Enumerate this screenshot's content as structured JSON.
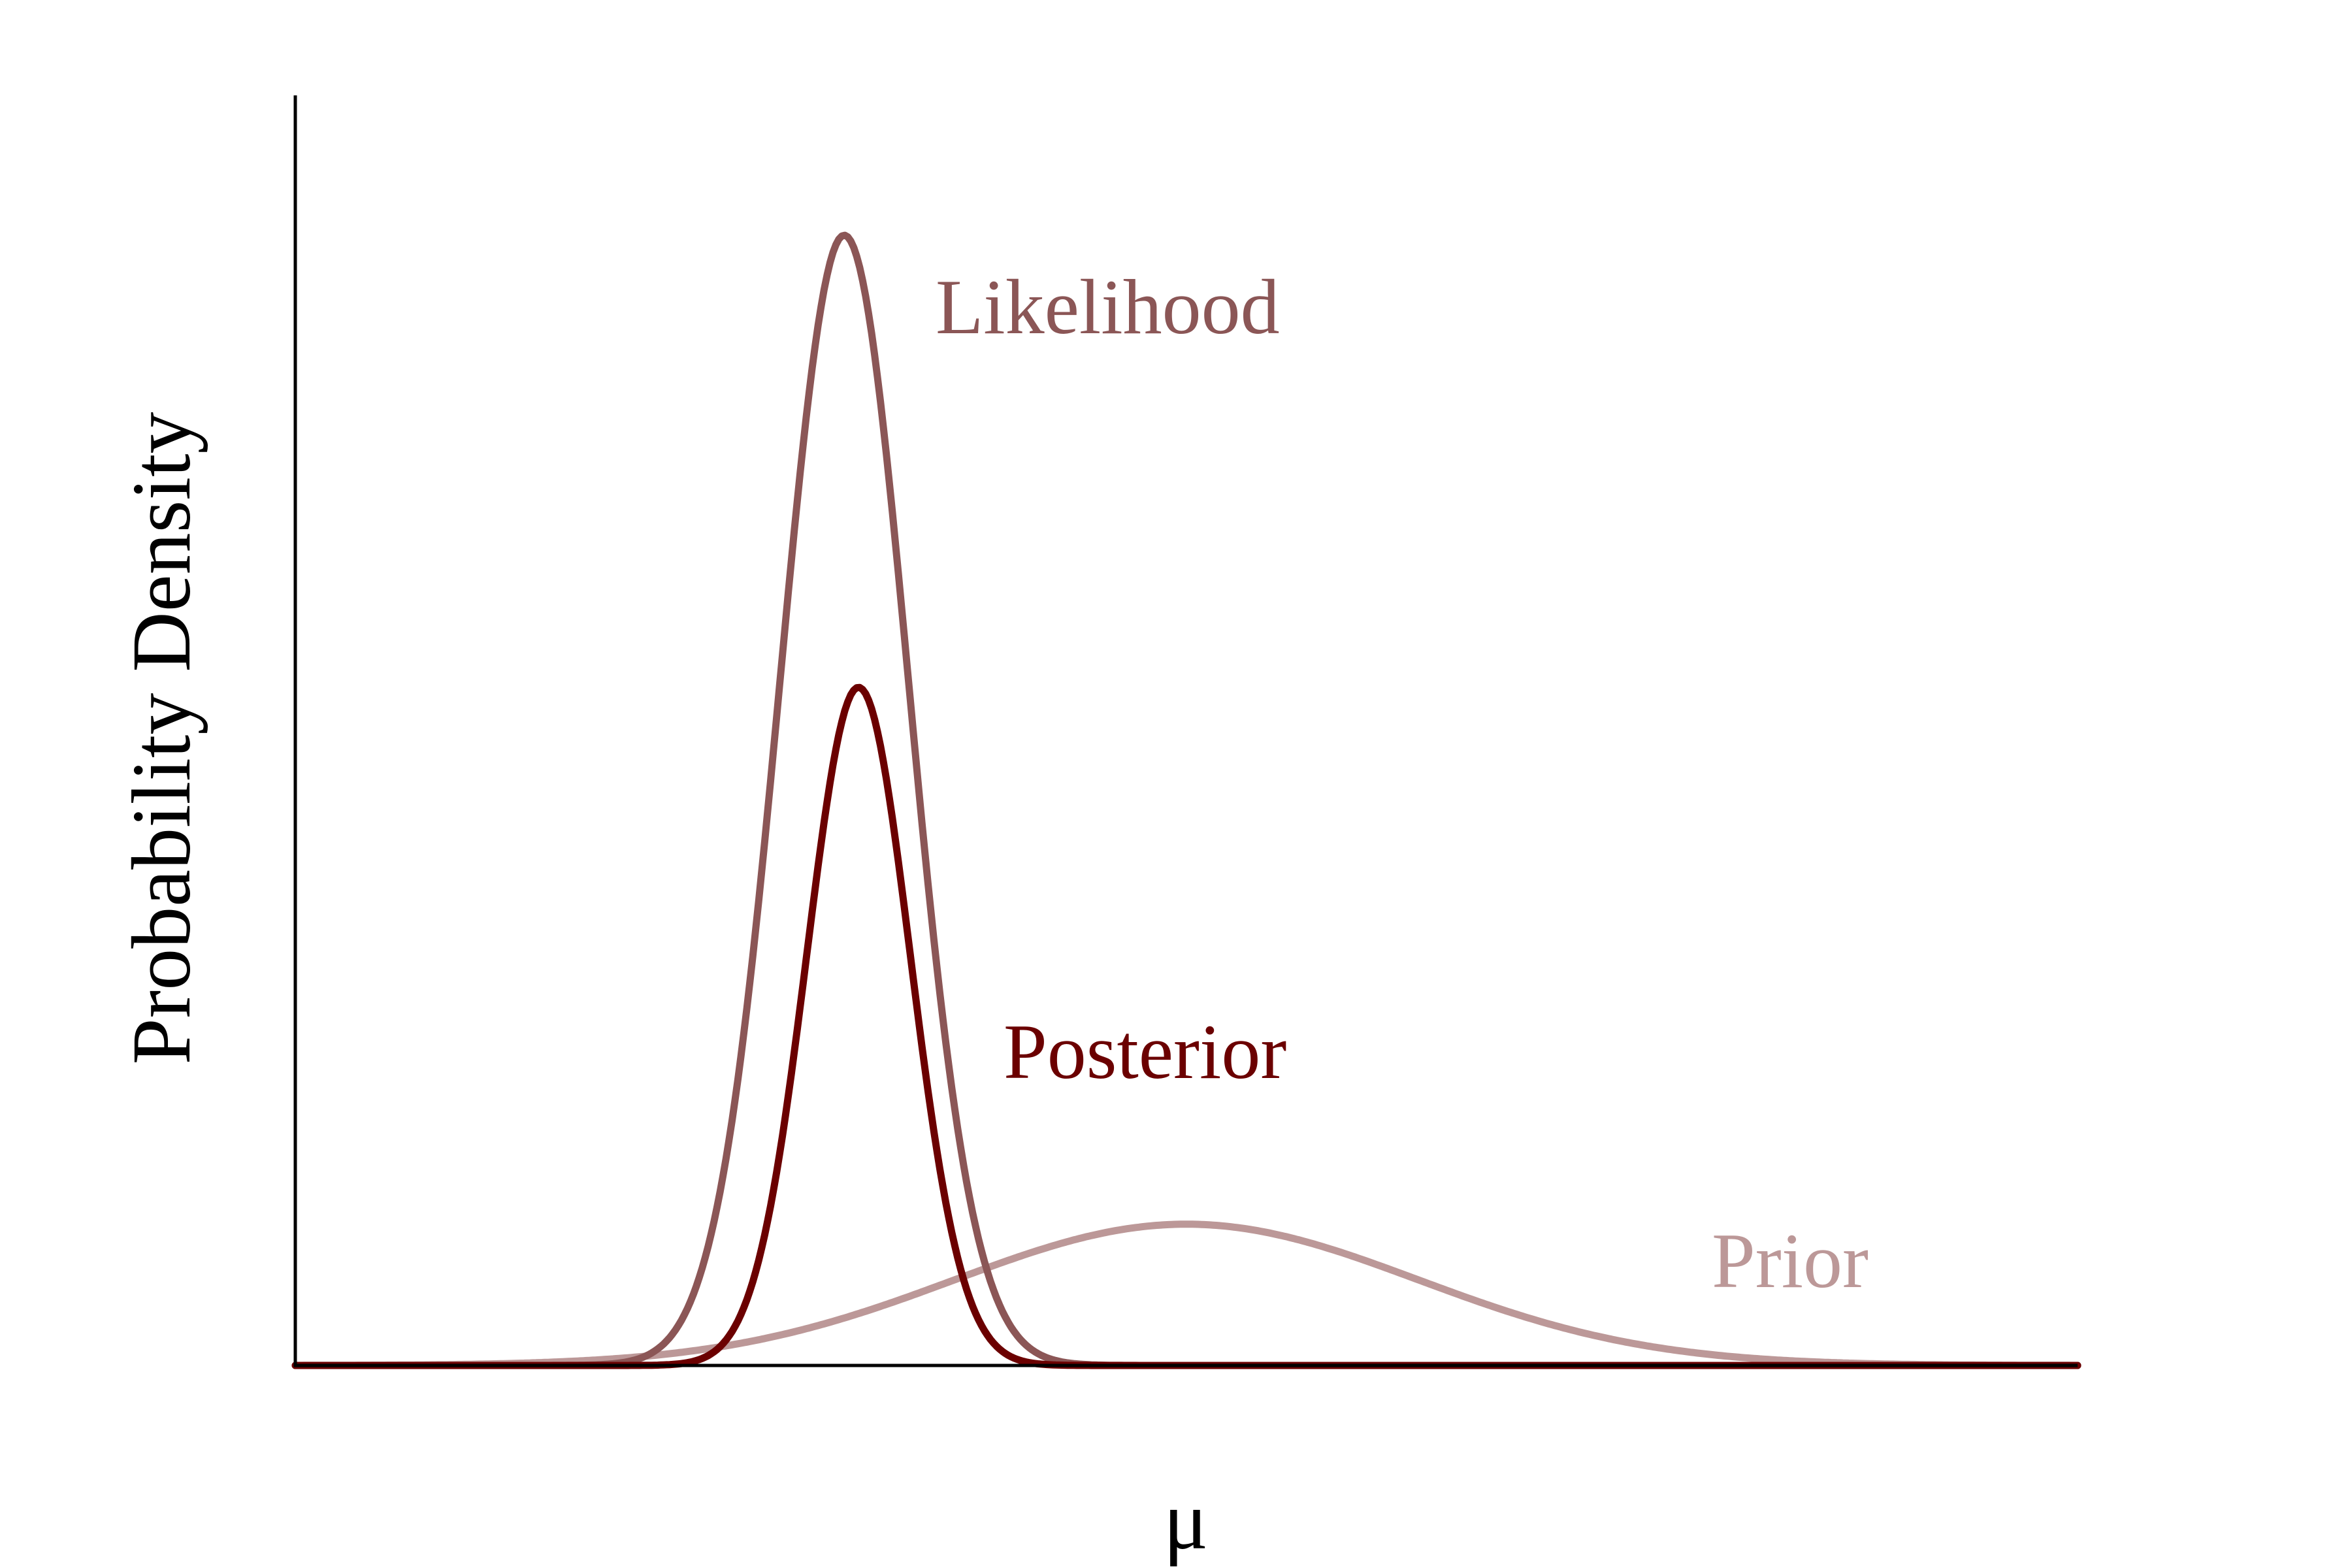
{
  "chart_data": {
    "type": "line",
    "title": "",
    "xlabel": "μ",
    "ylabel": "Probability Density",
    "xlim": [
      0,
      1
    ],
    "ylim": [
      0,
      1
    ],
    "grid": false,
    "legend": "direct labels next to curves",
    "series": [
      {
        "name": "Prior",
        "color": "#bc9898",
        "distribution": "normal",
        "mean": 0.5,
        "sd": 0.13,
        "peak": 0.125
      },
      {
        "name": "Likelihood",
        "color": "#8b5656",
        "distribution": "normal",
        "mean": 0.308,
        "sd": 0.036,
        "peak": 1.0
      },
      {
        "name": "Posterior",
        "color": "#6b0000",
        "distribution": "normal",
        "mean": 0.316,
        "sd": 0.029,
        "peak": 0.6
      }
    ]
  }
}
